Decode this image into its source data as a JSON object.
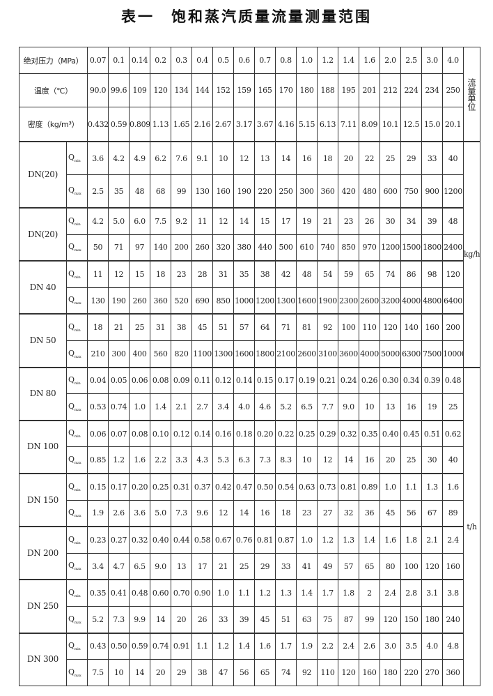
{
  "title": "表一　饱和蒸汽质量流量测量范围",
  "header_rows": [
    {
      "label": "绝对压力（MPa）",
      "values": [
        "0.07",
        "0.1",
        "0.14",
        "0.2",
        "0.3",
        "0.4",
        "0.5",
        "0.6",
        "0.7",
        "0.8",
        "1.0",
        "1.2",
        "1.4",
        "1.6",
        "2.0",
        "2.5",
        "3.0",
        "4.0"
      ]
    },
    {
      "label": "温度（℃）",
      "values": [
        "90.0",
        "99.6",
        "109",
        "120",
        "134",
        "144",
        "152",
        "159",
        "165",
        "170",
        "180",
        "188",
        "195",
        "201",
        "212",
        "224",
        "234",
        "250"
      ]
    },
    {
      "label": "密度（kg/m³）",
      "values": [
        "0.432",
        "0.59",
        "0.809",
        "1.13",
        "1.65",
        "2.16",
        "2.67",
        "3.17",
        "3.67",
        "4.16",
        "5.15",
        "6.13",
        "7.11",
        "8.09",
        "10.1",
        "12.5",
        "15.0",
        "20.1"
      ]
    }
  ],
  "units": {
    "header": "流量单位",
    "kg": "kg/h",
    "t": "t/h"
  },
  "q_labels": {
    "q": "Q",
    "min": "min",
    "max": "max"
  },
  "groups": [
    {
      "dn": "DN(20)",
      "qmin": [
        "3.6",
        "4.2",
        "4.9",
        "6.2",
        "7.6",
        "9.1",
        "10",
        "12",
        "13",
        "14",
        "16",
        "18",
        "20",
        "22",
        "25",
        "29",
        "33",
        "40"
      ],
      "qmax": [
        "2.5",
        "35",
        "48",
        "68",
        "99",
        "130",
        "160",
        "190",
        "220",
        "250",
        "300",
        "360",
        "420",
        "480",
        "600",
        "750",
        "900",
        "1200"
      ]
    },
    {
      "dn": "DN(20)",
      "qmin": [
        "4.2",
        "5.0",
        "6.0",
        "7.5",
        "9.2",
        "11",
        "12",
        "14",
        "15",
        "17",
        "19",
        "21",
        "23",
        "26",
        "30",
        "34",
        "39",
        "48"
      ],
      "qmax": [
        "50",
        "71",
        "97",
        "140",
        "200",
        "260",
        "320",
        "380",
        "440",
        "500",
        "610",
        "740",
        "850",
        "970",
        "1200",
        "1500",
        "1800",
        "2400"
      ]
    },
    {
      "dn": "DN 40",
      "qmin": [
        "11",
        "12",
        "15",
        "18",
        "23",
        "28",
        "31",
        "35",
        "38",
        "42",
        "48",
        "54",
        "59",
        "65",
        "74",
        "86",
        "98",
        "120"
      ],
      "qmax": [
        "130",
        "190",
        "260",
        "360",
        "520",
        "690",
        "850",
        "1000",
        "1200",
        "1300",
        "1600",
        "1900",
        "2300",
        "2600",
        "3200",
        "4000",
        "4800",
        "6400"
      ]
    },
    {
      "dn": "DN 50",
      "qmin": [
        "18",
        "21",
        "25",
        "31",
        "38",
        "45",
        "51",
        "57",
        "64",
        "71",
        "81",
        "92",
        "100",
        "110",
        "120",
        "140",
        "160",
        "200"
      ],
      "qmax": [
        "210",
        "300",
        "400",
        "560",
        "820",
        "1100",
        "1300",
        "1600",
        "1800",
        "2100",
        "2600",
        "3100",
        "3600",
        "4000",
        "5000",
        "6300",
        "7500",
        "10000"
      ]
    },
    {
      "dn": "DN 80",
      "qmin": [
        "0.04",
        "0.05",
        "0.06",
        "0.08",
        "0.09",
        "0.11",
        "0.12",
        "0.14",
        "0.15",
        "0.17",
        "0.19",
        "0.21",
        "0.24",
        "0.26",
        "0.30",
        "0.34",
        "0.39",
        "0.48"
      ],
      "qmax": [
        "0.53",
        "0.74",
        "1.0",
        "1.4",
        "2.1",
        "2.7",
        "3.4",
        "4.0",
        "4.6",
        "5.2",
        "6.5",
        "7.7",
        "9.0",
        "10",
        "13",
        "16",
        "19",
        "25"
      ]
    },
    {
      "dn": "DN 100",
      "qmin": [
        "0.06",
        "0.07",
        "0.08",
        "0.10",
        "0.12",
        "0.14",
        "0.16",
        "0.18",
        "0.20",
        "0.22",
        "0.25",
        "0.29",
        "0.32",
        "0.35",
        "0.40",
        "0.45",
        "0.51",
        "0.62"
      ],
      "qmax": [
        "0.85",
        "1.2",
        "1.6",
        "2.2",
        "3.3",
        "4.3",
        "5.3",
        "6.3",
        "7.3",
        "8.3",
        "10",
        "12",
        "14",
        "16",
        "20",
        "25",
        "30",
        "40"
      ]
    },
    {
      "dn": "DN 150",
      "qmin": [
        "0.15",
        "0.17",
        "0.20",
        "0.25",
        "0.31",
        "0.37",
        "0.42",
        "0.47",
        "0.50",
        "0.54",
        "0.63",
        "0.73",
        "0.81",
        "0.89",
        "1.0",
        "1.1",
        "1.3",
        "1.6"
      ],
      "qmax": [
        "1.9",
        "2.6",
        "3.6",
        "5.0",
        "7.3",
        "9.6",
        "12",
        "14",
        "16",
        "18",
        "23",
        "27",
        "32",
        "36",
        "45",
        "56",
        "67",
        "89"
      ]
    },
    {
      "dn": "DN 200",
      "qmin": [
        "0.23",
        "0.27",
        "0.32",
        "0.40",
        "0.44",
        "0.58",
        "0.67",
        "0.76",
        "0.81",
        "0.87",
        "1.0",
        "1.2",
        "1.3",
        "1.4",
        "1.6",
        "1.8",
        "2.1",
        "2.4"
      ],
      "qmax": [
        "3.4",
        "4.7",
        "6.5",
        "9.0",
        "13",
        "17",
        "21",
        "25",
        "29",
        "33",
        "41",
        "49",
        "57",
        "65",
        "80",
        "100",
        "120",
        "160"
      ]
    },
    {
      "dn": "DN 250",
      "qmin": [
        "0.35",
        "0.41",
        "0.48",
        "0.60",
        "0.70",
        "0.90",
        "1.0",
        "1.1",
        "1.2",
        "1.3",
        "1.4",
        "1.7",
        "1.8",
        "2",
        "2.4",
        "2.8",
        "3.1",
        "3.8"
      ],
      "qmax": [
        "5.2",
        "7.3",
        "9.9",
        "14",
        "20",
        "26",
        "33",
        "39",
        "45",
        "51",
        "63",
        "75",
        "87",
        "99",
        "120",
        "150",
        "180",
        "240"
      ]
    },
    {
      "dn": "DN 300",
      "qmin": [
        "0.43",
        "0.50",
        "0.59",
        "0.74",
        "0.91",
        "1.1",
        "1.2",
        "1.4",
        "1.6",
        "1.7",
        "1.9",
        "2.2",
        "2.4",
        "2.6",
        "3.0",
        "3.5",
        "4.0",
        "4.8"
      ],
      "qmax": [
        "7.5",
        "10",
        "14",
        "20",
        "29",
        "38",
        "47",
        "56",
        "65",
        "74",
        "92",
        "110",
        "120",
        "160",
        "180",
        "220",
        "270",
        "360"
      ]
    }
  ]
}
